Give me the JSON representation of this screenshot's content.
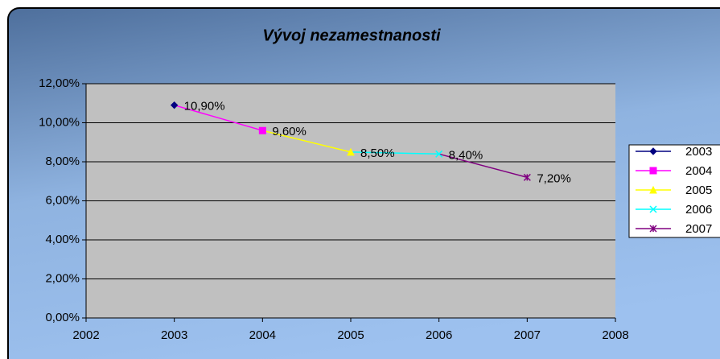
{
  "chart_data": {
    "type": "line",
    "title": "Vývoj nezamestnanosti",
    "x": [
      2003,
      2004,
      2005,
      2006,
      2007
    ],
    "values": [
      10.9,
      9.6,
      8.5,
      8.4,
      7.2
    ],
    "value_labels": [
      "10,90%",
      "9,60%",
      "8,50%",
      "8,40%",
      "7,20%"
    ],
    "point_names": [
      "2003",
      "2004",
      "2005",
      "2006",
      "2007"
    ],
    "point_colors": [
      "#000080",
      "#ff00ff",
      "#ffff00",
      "#00ffff",
      "#800080"
    ],
    "markers": [
      "diamond",
      "square",
      "triangle",
      "x",
      "star"
    ],
    "xlim": [
      2002,
      2008
    ],
    "xticks": [
      2002,
      2003,
      2004,
      2005,
      2006,
      2007,
      2008
    ],
    "ylim": [
      0,
      12
    ],
    "yticks": [
      {
        "value": 0,
        "label": "0,00%"
      },
      {
        "value": 2,
        "label": "2,00%"
      },
      {
        "value": 4,
        "label": "4,00%"
      },
      {
        "value": 6,
        "label": "6,00%"
      },
      {
        "value": 8,
        "label": "8,00%"
      },
      {
        "value": 10,
        "label": "10,00%"
      },
      {
        "value": 12,
        "label": "12,00%"
      }
    ],
    "grid": true,
    "legend": "right"
  }
}
